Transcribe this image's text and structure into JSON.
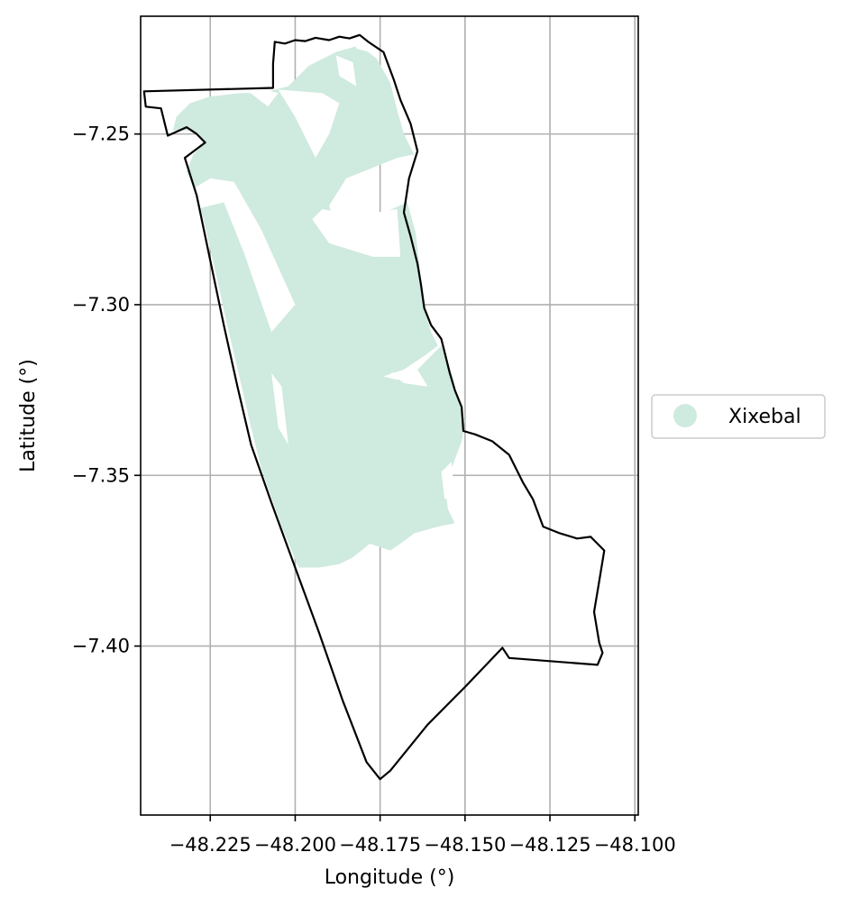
{
  "map": {
    "xlabel": "Longitude (°)",
    "ylabel": "Latitude (°)",
    "xlim": [
      -48.2455,
      -48.099
    ],
    "ylim": [
      -7.4495,
      -7.2155
    ],
    "grid": true,
    "x_ticks": [
      {
        "value": -48.225,
        "label": "−48.225"
      },
      {
        "value": -48.2,
        "label": "−48.200"
      },
      {
        "value": -48.175,
        "label": "−48.175"
      },
      {
        "value": -48.15,
        "label": "−48.150"
      },
      {
        "value": -48.125,
        "label": "−48.125"
      },
      {
        "value": -48.1,
        "label": "−48.100"
      }
    ],
    "y_ticks": [
      {
        "value": -7.25,
        "label": "−7.25"
      },
      {
        "value": -7.3,
        "label": "−7.30"
      },
      {
        "value": -7.35,
        "label": "−7.35"
      },
      {
        "value": -7.4,
        "label": "−7.40"
      }
    ],
    "legend": {
      "placement": "center-right outside axes",
      "entries": [
        {
          "label": "Xixebal",
          "color": "#cfeade"
        }
      ]
    },
    "colors": {
      "territory": "#cfeade",
      "boundary": "#000000",
      "grid": "#b0b0b0"
    },
    "features": {
      "boundary": [
        [
          -48.2065,
          -7.2295
        ],
        [
          -48.206,
          -7.223
        ],
        [
          -48.203,
          -7.2235
        ],
        [
          -48.2,
          -7.2225
        ],
        [
          -48.197,
          -7.2228
        ],
        [
          -48.194,
          -7.2218
        ],
        [
          -48.19,
          -7.2225
        ],
        [
          -48.187,
          -7.2215
        ],
        [
          -48.184,
          -7.222
        ],
        [
          -48.181,
          -7.221
        ],
        [
          -48.1785,
          -7.223
        ],
        [
          -48.174,
          -7.226
        ],
        [
          -48.171,
          -7.234
        ],
        [
          -48.169,
          -7.24
        ],
        [
          -48.166,
          -7.247
        ],
        [
          -48.164,
          -7.255
        ],
        [
          -48.1665,
          -7.263
        ],
        [
          -48.168,
          -7.273
        ],
        [
          -48.166,
          -7.28
        ],
        [
          -48.164,
          -7.288
        ],
        [
          -48.163,
          -7.294
        ],
        [
          -48.162,
          -7.301
        ],
        [
          -48.16,
          -7.306
        ],
        [
          -48.157,
          -7.31
        ],
        [
          -48.1545,
          -7.32
        ],
        [
          -48.153,
          -7.325
        ],
        [
          -48.151,
          -7.33
        ],
        [
          -48.1505,
          -7.337
        ],
        [
          -48.147,
          -7.338
        ],
        [
          -48.142,
          -7.34
        ],
        [
          -48.137,
          -7.344
        ],
        [
          -48.133,
          -7.352
        ],
        [
          -48.13,
          -7.357
        ],
        [
          -48.127,
          -7.365
        ],
        [
          -48.122,
          -7.367
        ],
        [
          -48.117,
          -7.3685
        ],
        [
          -48.113,
          -7.368
        ],
        [
          -48.109,
          -7.372
        ],
        [
          -48.1105,
          -7.381
        ],
        [
          -48.112,
          -7.39
        ],
        [
          -48.1105,
          -7.399
        ],
        [
          -48.1095,
          -7.402
        ],
        [
          -48.111,
          -7.4055
        ],
        [
          -48.137,
          -7.4035
        ],
        [
          -48.139,
          -7.4005
        ],
        [
          -48.15,
          -7.412
        ],
        [
          -48.161,
          -7.423
        ],
        [
          -48.172,
          -7.4365
        ],
        [
          -48.175,
          -7.439
        ],
        [
          -48.179,
          -7.434
        ],
        [
          -48.186,
          -7.416
        ],
        [
          -48.193,
          -7.396
        ],
        [
          -48.2,
          -7.377
        ],
        [
          -48.207,
          -7.358
        ],
        [
          -48.213,
          -7.341
        ],
        [
          -48.217,
          -7.324
        ],
        [
          -48.221,
          -7.306
        ],
        [
          -48.225,
          -7.287
        ],
        [
          -48.229,
          -7.268
        ],
        [
          -48.2325,
          -7.257
        ],
        [
          -48.2265,
          -7.2525
        ],
        [
          -48.229,
          -7.25
        ],
        [
          -48.232,
          -7.248
        ],
        [
          -48.2375,
          -7.2505
        ],
        [
          -48.2395,
          -7.2425
        ],
        [
          -48.244,
          -7.242
        ],
        [
          -48.2445,
          -7.2375
        ],
        [
          -48.2065,
          -7.2365
        ]
      ],
      "territory": [
        [
          [
            -48.231,
            -7.241
          ],
          [
            -48.225,
            -7.239
          ],
          [
            -48.216,
            -7.238
          ],
          [
            -48.21,
            -7.238
          ],
          [
            -48.202,
            -7.236
          ],
          [
            -48.196,
            -7.23
          ],
          [
            -48.188,
            -7.226
          ],
          [
            -48.181,
            -7.224
          ],
          [
            -48.176,
            -7.228
          ],
          [
            -48.172,
            -7.235
          ],
          [
            -48.17,
            -7.243
          ],
          [
            -48.168,
            -7.25
          ],
          [
            -48.165,
            -7.256
          ],
          [
            -48.17,
            -7.257
          ],
          [
            -48.185,
            -7.263
          ],
          [
            -48.19,
            -7.271
          ],
          [
            -48.188,
            -7.277
          ],
          [
            -48.176,
            -7.274
          ],
          [
            -48.167,
            -7.27
          ],
          [
            -48.1645,
            -7.279
          ],
          [
            -48.1635,
            -7.288
          ],
          [
            -48.1625,
            -7.296
          ],
          [
            -48.1615,
            -7.303
          ],
          [
            -48.16,
            -7.308
          ],
          [
            -48.158,
            -7.312
          ],
          [
            -48.162,
            -7.315
          ],
          [
            -48.168,
            -7.319
          ],
          [
            -48.174,
            -7.321
          ],
          [
            -48.17,
            -7.322
          ],
          [
            -48.165,
            -7.32
          ],
          [
            -48.16,
            -7.315
          ],
          [
            -48.157,
            -7.312
          ],
          [
            -48.154,
            -7.32
          ],
          [
            -48.152,
            -7.328
          ],
          [
            -48.15,
            -7.334
          ],
          [
            -48.151,
            -7.34
          ],
          [
            -48.154,
            -7.348
          ],
          [
            -48.156,
            -7.353
          ],
          [
            -48.155,
            -7.36
          ],
          [
            -48.153,
            -7.364
          ],
          [
            -48.158,
            -7.365
          ],
          [
            -48.165,
            -7.367
          ],
          [
            -48.169,
            -7.37
          ],
          [
            -48.172,
            -7.372
          ],
          [
            -48.178,
            -7.37
          ],
          [
            -48.183,
            -7.374
          ],
          [
            -48.187,
            -7.376
          ],
          [
            -48.193,
            -7.377
          ],
          [
            -48.199,
            -7.377
          ],
          [
            -48.204,
            -7.365
          ],
          [
            -48.21,
            -7.348
          ],
          [
            -48.213,
            -7.336
          ],
          [
            -48.216,
            -7.323
          ],
          [
            -48.22,
            -7.306
          ],
          [
            -48.224,
            -7.288
          ],
          [
            -48.227,
            -7.275
          ],
          [
            -48.229,
            -7.268
          ],
          [
            -48.232,
            -7.261
          ],
          [
            -48.23,
            -7.256
          ],
          [
            -48.2265,
            -7.2525
          ],
          [
            -48.23,
            -7.249
          ],
          [
            -48.236,
            -7.249
          ],
          [
            -48.235,
            -7.245
          ],
          [
            -48.231,
            -7.241
          ]
        ]
      ],
      "gaps": [
        [
          [
            -48.2145,
            -7.237
          ],
          [
            -48.208,
            -7.242
          ],
          [
            -48.205,
            -7.238
          ],
          [
            -48.209,
            -7.237
          ]
        ],
        [
          [
            -48.205,
            -7.237
          ],
          [
            -48.2,
            -7.245
          ],
          [
            -48.194,
            -7.257
          ],
          [
            -48.19,
            -7.25
          ],
          [
            -48.187,
            -7.241
          ],
          [
            -48.192,
            -7.238
          ]
        ],
        [
          [
            -48.188,
            -7.227
          ],
          [
            -48.187,
            -7.233
          ],
          [
            -48.182,
            -7.236
          ],
          [
            -48.183,
            -7.229
          ]
        ],
        [
          [
            -48.183,
            -7.218
          ],
          [
            -48.179,
            -7.221
          ],
          [
            -48.178,
            -7.226
          ],
          [
            -48.182,
            -7.225
          ]
        ],
        [
          [
            -48.192,
            -7.272
          ],
          [
            -48.182,
            -7.274
          ],
          [
            -48.17,
            -7.272
          ],
          [
            -48.169,
            -7.286
          ],
          [
            -48.177,
            -7.286
          ],
          [
            -48.19,
            -7.282
          ],
          [
            -48.195,
            -7.275
          ]
        ],
        [
          [
            -48.229,
            -7.272
          ],
          [
            -48.221,
            -7.27
          ],
          [
            -48.215,
            -7.285
          ],
          [
            -48.207,
            -7.308
          ],
          [
            -48.2,
            -7.3
          ],
          [
            -48.21,
            -7.278
          ],
          [
            -48.218,
            -7.264
          ],
          [
            -48.225,
            -7.263
          ],
          [
            -48.23,
            -7.266
          ]
        ],
        [
          [
            -48.207,
            -7.32
          ],
          [
            -48.205,
            -7.336
          ],
          [
            -48.202,
            -7.341
          ],
          [
            -48.204,
            -7.324
          ]
        ],
        [
          [
            -48.172,
            -7.32
          ],
          [
            -48.164,
            -7.319
          ],
          [
            -48.161,
            -7.324
          ],
          [
            -48.168,
            -7.323
          ]
        ],
        [
          [
            -48.157,
            -7.349
          ],
          [
            -48.154,
            -7.346
          ],
          [
            -48.153,
            -7.356
          ],
          [
            -48.156,
            -7.357
          ]
        ]
      ]
    }
  }
}
